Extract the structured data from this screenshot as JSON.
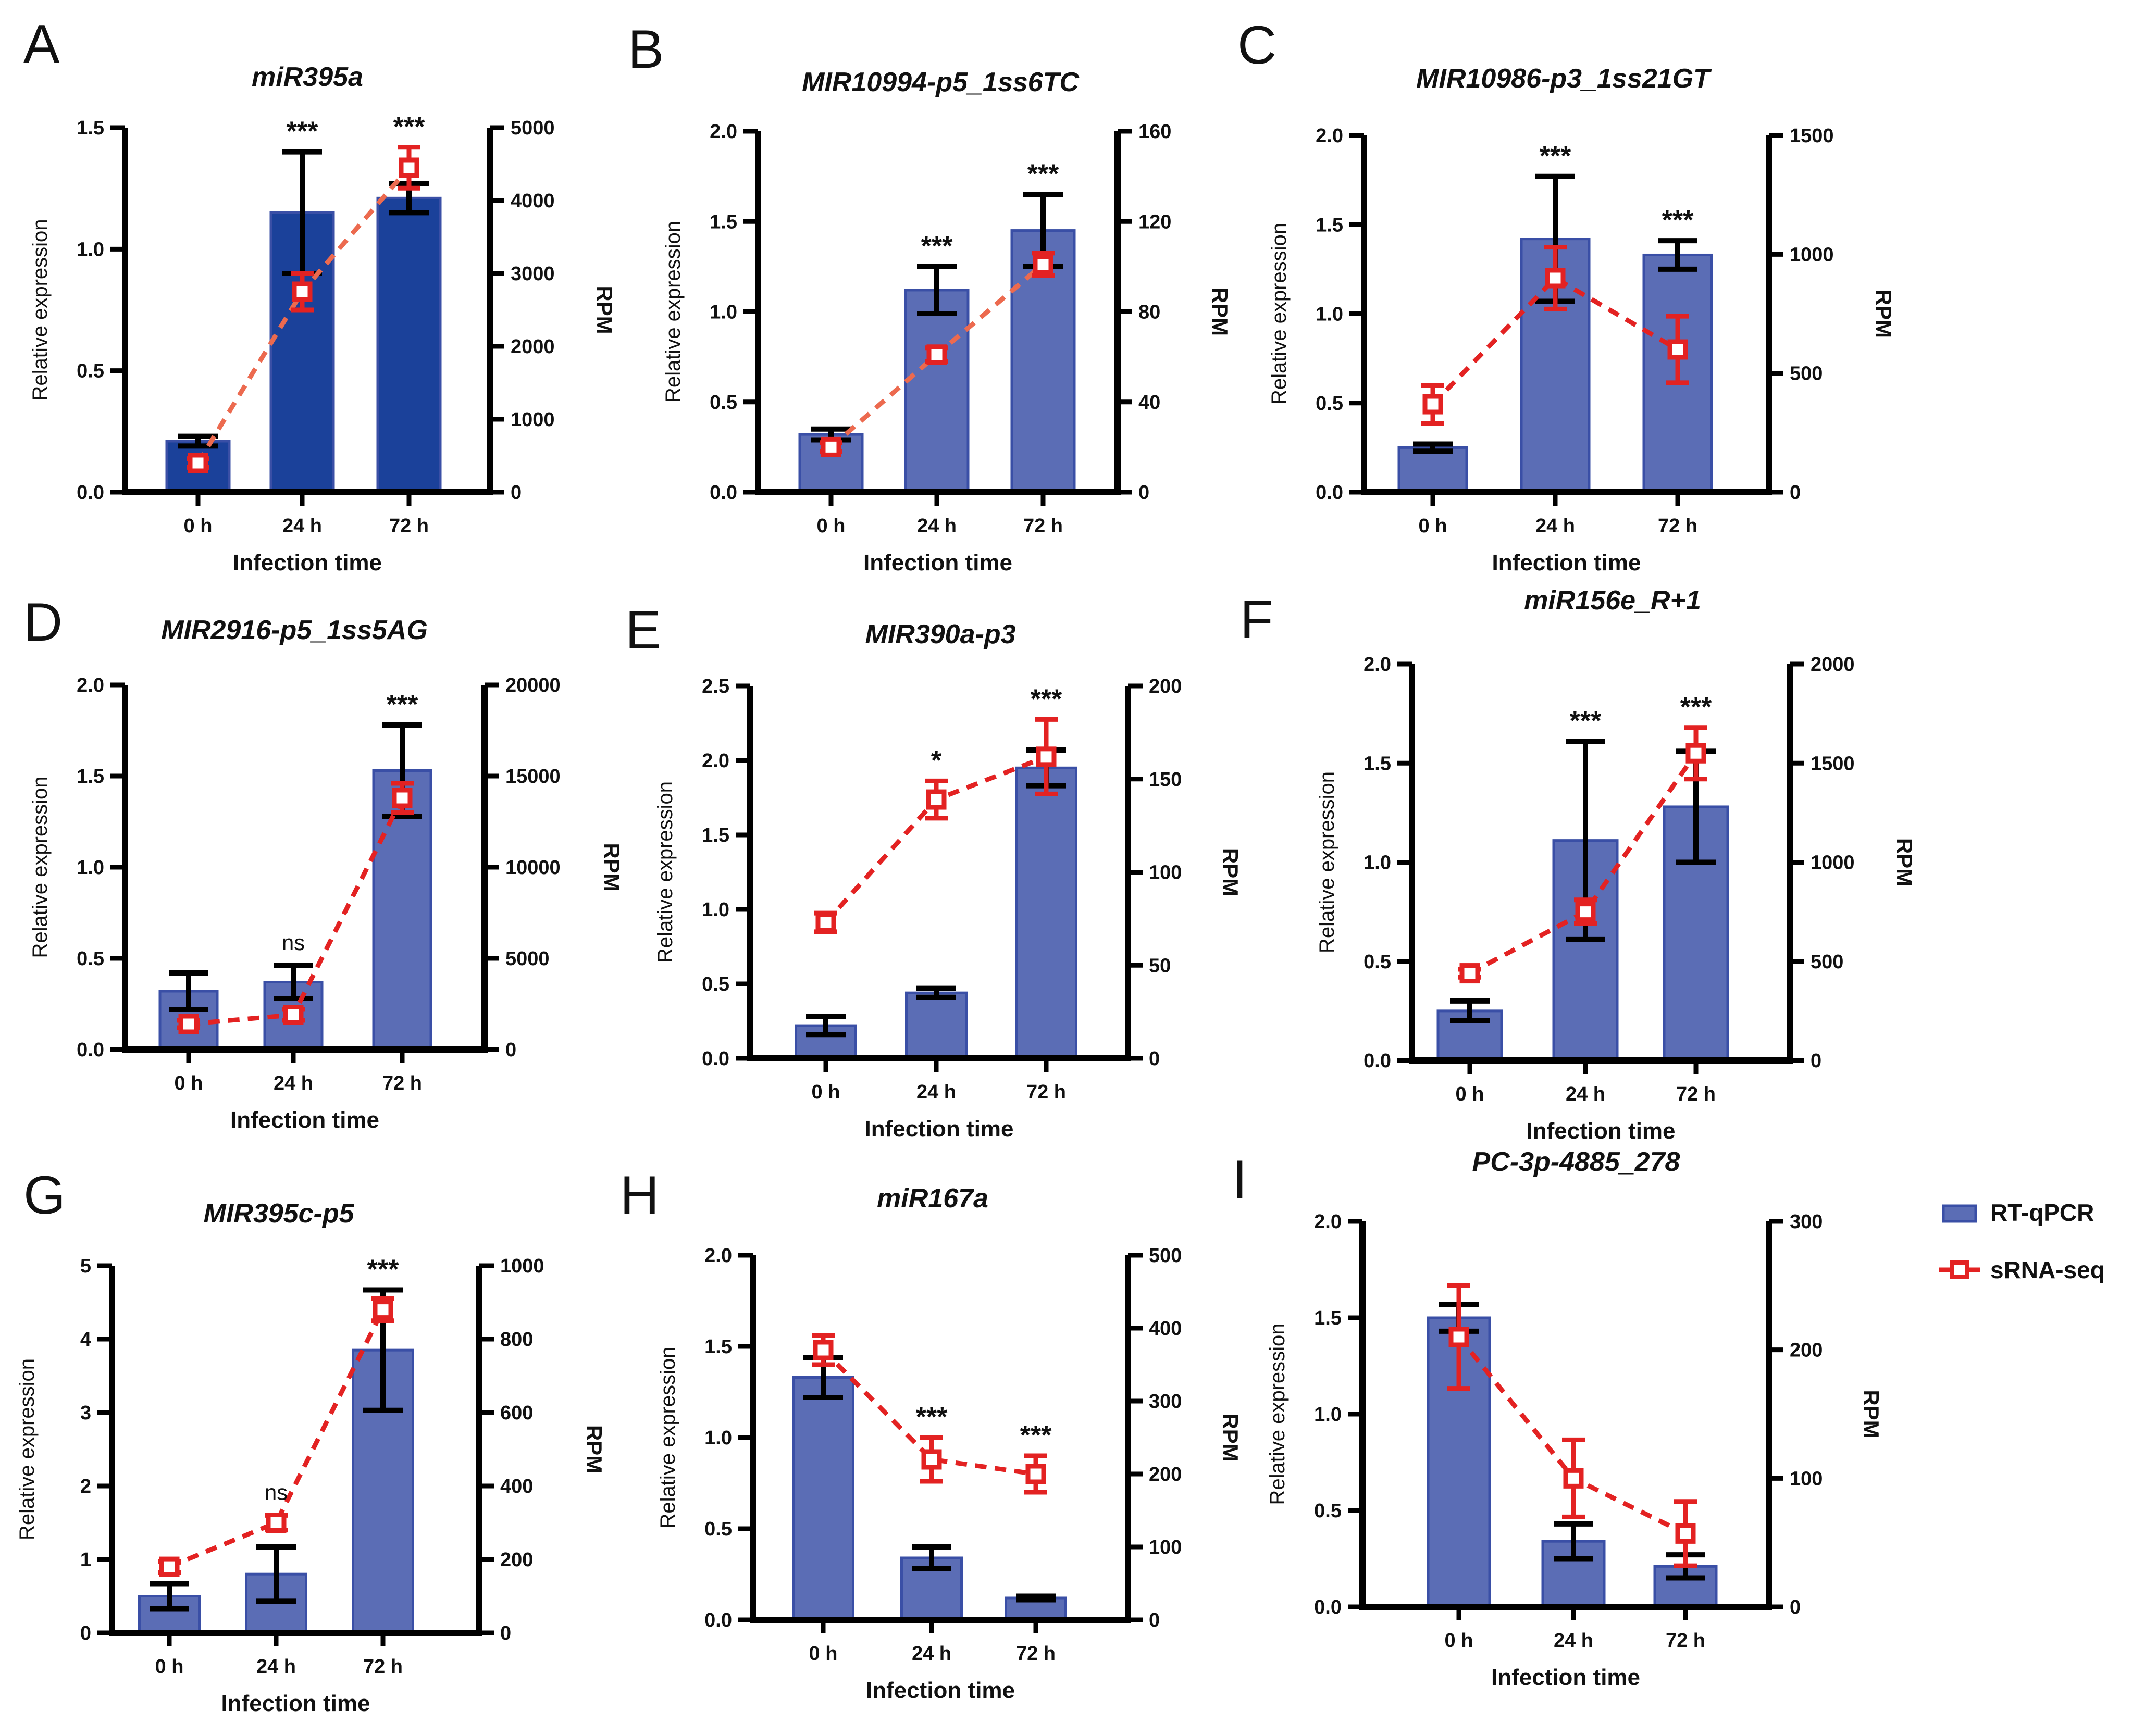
{
  "legend": {
    "bar_label": "RT-qPCR",
    "line_label": "sRNA-seq"
  },
  "colors": {
    "bar_fill_dark": "#1b419a",
    "bar_fill": "#5b6db5",
    "bar_stroke": "#3a4fa6",
    "line": "#e32222",
    "line_light": "#ec6a4f",
    "axis": "#000000"
  },
  "chart_data": [
    {
      "type": "bar",
      "panel": "A",
      "title": "miR395a",
      "categories": [
        "0 h",
        "24 h",
        "72 h"
      ],
      "xlabel": "Infection time",
      "ylabel": "Relative expression",
      "y2label": "RPM",
      "ylim": [
        0,
        1.5
      ],
      "yticks": [
        0.0,
        0.5,
        1.0,
        1.5
      ],
      "ytick_labels": [
        "0.0",
        "0.5",
        "1.0",
        "1.5"
      ],
      "y2lim": [
        0,
        5000
      ],
      "y2ticks": [
        0,
        1000,
        2000,
        3000,
        4000,
        5000
      ],
      "y2tick_labels": [
        "0",
        "1000",
        "2000",
        "3000",
        "4000",
        "5000"
      ],
      "series": [
        {
          "name": "RT-qPCR",
          "axis": "left",
          "values": [
            0.21,
            1.15,
            1.21
          ],
          "errors": [
            0.02,
            0.25,
            0.06
          ]
        },
        {
          "name": "sRNA-seq",
          "axis": "right",
          "values": [
            400,
            2750,
            4450
          ],
          "errors": [
            60,
            250,
            280
          ]
        }
      ],
      "significance": [
        "",
        "***",
        "***"
      ]
    },
    {
      "type": "bar",
      "panel": "B",
      "title": "MIR10994-p5_1ss6TC",
      "categories": [
        "0 h",
        "24 h",
        "72 h"
      ],
      "xlabel": "Infection time",
      "ylabel": "Relative expression",
      "y2label": "RPM",
      "ylim": [
        0,
        2.0
      ],
      "yticks": [
        0.0,
        0.5,
        1.0,
        1.5,
        2.0
      ],
      "ytick_labels": [
        "0.0",
        "0.5",
        "1.0",
        "1.5",
        "2.0"
      ],
      "y2lim": [
        0,
        160
      ],
      "y2ticks": [
        0,
        40,
        80,
        120,
        160
      ],
      "y2tick_labels": [
        "0",
        "40",
        "80",
        "120",
        "160"
      ],
      "series": [
        {
          "name": "RT-qPCR",
          "axis": "left",
          "values": [
            0.32,
            1.12,
            1.45
          ],
          "errors": [
            0.03,
            0.13,
            0.2
          ]
        },
        {
          "name": "sRNA-seq",
          "axis": "right",
          "values": [
            20,
            61,
            101
          ],
          "errors": [
            2,
            3,
            5
          ]
        }
      ],
      "significance": [
        "",
        "***",
        "***"
      ]
    },
    {
      "type": "bar",
      "panel": "C",
      "title": "MIR10986-p3_1ss21GT",
      "categories": [
        "0 h",
        "24 h",
        "72 h"
      ],
      "xlabel": "Infection time",
      "ylabel": "Relative expression",
      "y2label": "RPM",
      "ylim": [
        0,
        2.0
      ],
      "yticks": [
        0.0,
        0.5,
        1.0,
        1.5,
        2.0
      ],
      "ytick_labels": [
        "0.0",
        "0.5",
        "1.0",
        "1.5",
        "2.0"
      ],
      "y2lim": [
        0,
        1500
      ],
      "y2ticks": [
        0,
        500,
        1000,
        1500
      ],
      "y2tick_labels": [
        "0",
        "500",
        "1000",
        "1500"
      ],
      "series": [
        {
          "name": "RT-qPCR",
          "axis": "left",
          "values": [
            0.25,
            1.42,
            1.33
          ],
          "errors": [
            0.02,
            0.35,
            0.08
          ]
        },
        {
          "name": "sRNA-seq",
          "axis": "right",
          "values": [
            370,
            900,
            600
          ],
          "errors": [
            80,
            130,
            140
          ]
        }
      ],
      "significance": [
        "",
        "***",
        "***"
      ]
    },
    {
      "type": "bar",
      "panel": "D",
      "title": "MIR2916-p5_1ss5AG",
      "categories": [
        "0 h",
        "24 h",
        "72 h"
      ],
      "xlabel": "Infection time",
      "ylabel": "Relative expression",
      "y2label": "RPM",
      "ylim": [
        0,
        2.0
      ],
      "yticks": [
        0.0,
        0.5,
        1.0,
        1.5,
        2.0
      ],
      "ytick_labels": [
        "0.0",
        "0.5",
        "1.0",
        "1.5",
        "2.0"
      ],
      "y2lim": [
        0,
        20000
      ],
      "y2ticks": [
        0,
        5000,
        10000,
        15000,
        20000
      ],
      "y2tick_labels": [
        "0",
        "5000",
        "10000",
        "15000",
        "20000"
      ],
      "series": [
        {
          "name": "RT-qPCR",
          "axis": "left",
          "values": [
            0.32,
            0.37,
            1.53
          ],
          "errors": [
            0.1,
            0.09,
            0.25
          ]
        },
        {
          "name": "sRNA-seq",
          "axis": "right",
          "values": [
            1400,
            1900,
            13800
          ],
          "errors": [
            200,
            300,
            800
          ]
        }
      ],
      "significance": [
        "",
        "ns",
        "***"
      ]
    },
    {
      "type": "bar",
      "panel": "E",
      "title": "MIR390a-p3",
      "categories": [
        "0 h",
        "24 h",
        "72 h"
      ],
      "xlabel": "Infection time",
      "ylabel": "Relative expression",
      "y2label": "RPM",
      "ylim": [
        0,
        2.5
      ],
      "yticks": [
        0.0,
        0.5,
        1.0,
        1.5,
        2.0,
        2.5
      ],
      "ytick_labels": [
        "0.0",
        "0.5",
        "1.0",
        "1.5",
        "2.0",
        "2.5"
      ],
      "y2lim": [
        0,
        200
      ],
      "y2ticks": [
        0,
        50,
        100,
        150,
        200
      ],
      "y2tick_labels": [
        "0",
        "50",
        "100",
        "150",
        "200"
      ],
      "series": [
        {
          "name": "RT-qPCR",
          "axis": "left",
          "values": [
            0.22,
            0.44,
            1.95
          ],
          "errors": [
            0.06,
            0.03,
            0.12
          ]
        },
        {
          "name": "sRNA-seq",
          "axis": "right",
          "values": [
            73,
            139,
            162
          ],
          "errors": [
            5,
            10,
            20
          ]
        }
      ],
      "significance": [
        "",
        "*",
        "***"
      ]
    },
    {
      "type": "bar",
      "panel": "F",
      "title": "miR156e_R+1",
      "categories": [
        "0 h",
        "24 h",
        "72 h"
      ],
      "xlabel": "Infection time",
      "ylabel": "Relative expression",
      "y2label": "RPM",
      "ylim": [
        0,
        2.0
      ],
      "yticks": [
        0.0,
        0.5,
        1.0,
        1.5,
        2.0
      ],
      "ytick_labels": [
        "0.0",
        "0.5",
        "1.0",
        "1.5",
        "2.0"
      ],
      "y2lim": [
        0,
        2000
      ],
      "y2ticks": [
        0,
        500,
        1000,
        1500,
        2000
      ],
      "y2tick_labels": [
        "0",
        "500",
        "1000",
        "1500",
        "2000"
      ],
      "series": [
        {
          "name": "RT-qPCR",
          "axis": "left",
          "values": [
            0.25,
            1.11,
            1.28
          ],
          "errors": [
            0.05,
            0.5,
            0.28
          ]
        },
        {
          "name": "sRNA-seq",
          "axis": "right",
          "values": [
            440,
            750,
            1550
          ],
          "errors": [
            20,
            60,
            130
          ]
        }
      ],
      "significance": [
        "",
        "***",
        "***"
      ]
    },
    {
      "type": "bar",
      "panel": "G",
      "title": "MIR395c-p5",
      "categories": [
        "0 h",
        "24 h",
        "72 h"
      ],
      "xlabel": "Infection time",
      "ylabel": "Relative expression",
      "y2label": "RPM",
      "ylim": [
        0,
        5
      ],
      "yticks": [
        0,
        1,
        2,
        3,
        4,
        5
      ],
      "ytick_labels": [
        "0",
        "1",
        "2",
        "3",
        "4",
        "5"
      ],
      "y2lim": [
        0,
        1000
      ],
      "y2ticks": [
        0,
        200,
        400,
        600,
        800,
        1000
      ],
      "y2tick_labels": [
        "0",
        "200",
        "400",
        "600",
        "800",
        "1000"
      ],
      "series": [
        {
          "name": "RT-qPCR",
          "axis": "left",
          "values": [
            0.5,
            0.8,
            3.85
          ],
          "errors": [
            0.17,
            0.37,
            0.82
          ]
        },
        {
          "name": "sRNA-seq",
          "axis": "right",
          "values": [
            180,
            300,
            880
          ],
          "errors": [
            15,
            20,
            30
          ]
        }
      ],
      "significance": [
        "",
        "ns",
        "***"
      ]
    },
    {
      "type": "bar",
      "panel": "H",
      "title": "miR167a",
      "categories": [
        "0 h",
        "24 h",
        "72 h"
      ],
      "xlabel": "Infection time",
      "ylabel": "Relative expression",
      "y2label": "RPM",
      "ylim": [
        0,
        2.0
      ],
      "yticks": [
        0.0,
        0.5,
        1.0,
        1.5,
        2.0
      ],
      "ytick_labels": [
        "0.0",
        "0.5",
        "1.0",
        "1.5",
        "2.0"
      ],
      "y2lim": [
        0,
        500
      ],
      "y2ticks": [
        0,
        100,
        200,
        300,
        400,
        500
      ],
      "y2tick_labels": [
        "0",
        "100",
        "200",
        "300",
        "400",
        "500"
      ],
      "series": [
        {
          "name": "RT-qPCR",
          "axis": "left",
          "values": [
            1.33,
            0.34,
            0.12
          ],
          "errors": [
            0.11,
            0.06,
            0.01
          ]
        },
        {
          "name": "sRNA-seq",
          "axis": "right",
          "values": [
            370,
            220,
            200
          ],
          "errors": [
            20,
            30,
            25
          ]
        }
      ],
      "significance": [
        "",
        "***",
        "***"
      ]
    },
    {
      "type": "bar",
      "panel": "I",
      "title": "PC-3p-4885_278",
      "categories": [
        "0 h",
        "24 h",
        "72 h"
      ],
      "xlabel": "Infection time",
      "ylabel": "Relative expression",
      "y2label": "RPM",
      "ylim": [
        0,
        2.0
      ],
      "yticks": [
        0.0,
        0.5,
        1.0,
        1.5,
        2.0
      ],
      "ytick_labels": [
        "0.0",
        "0.5",
        "1.0",
        "1.5",
        "2.0"
      ],
      "y2lim": [
        0,
        300
      ],
      "y2ticks": [
        0,
        100,
        200,
        300
      ],
      "y2tick_labels": [
        "0",
        "100",
        "200",
        "300"
      ],
      "series": [
        {
          "name": "RT-qPCR",
          "axis": "left",
          "values": [
            1.5,
            0.34,
            0.21
          ],
          "errors": [
            0.07,
            0.09,
            0.06
          ]
        },
        {
          "name": "sRNA-seq",
          "axis": "right",
          "values": [
            210,
            100,
            57
          ],
          "errors": [
            40,
            30,
            25
          ]
        }
      ],
      "significance": [
        "",
        "",
        ""
      ]
    }
  ]
}
